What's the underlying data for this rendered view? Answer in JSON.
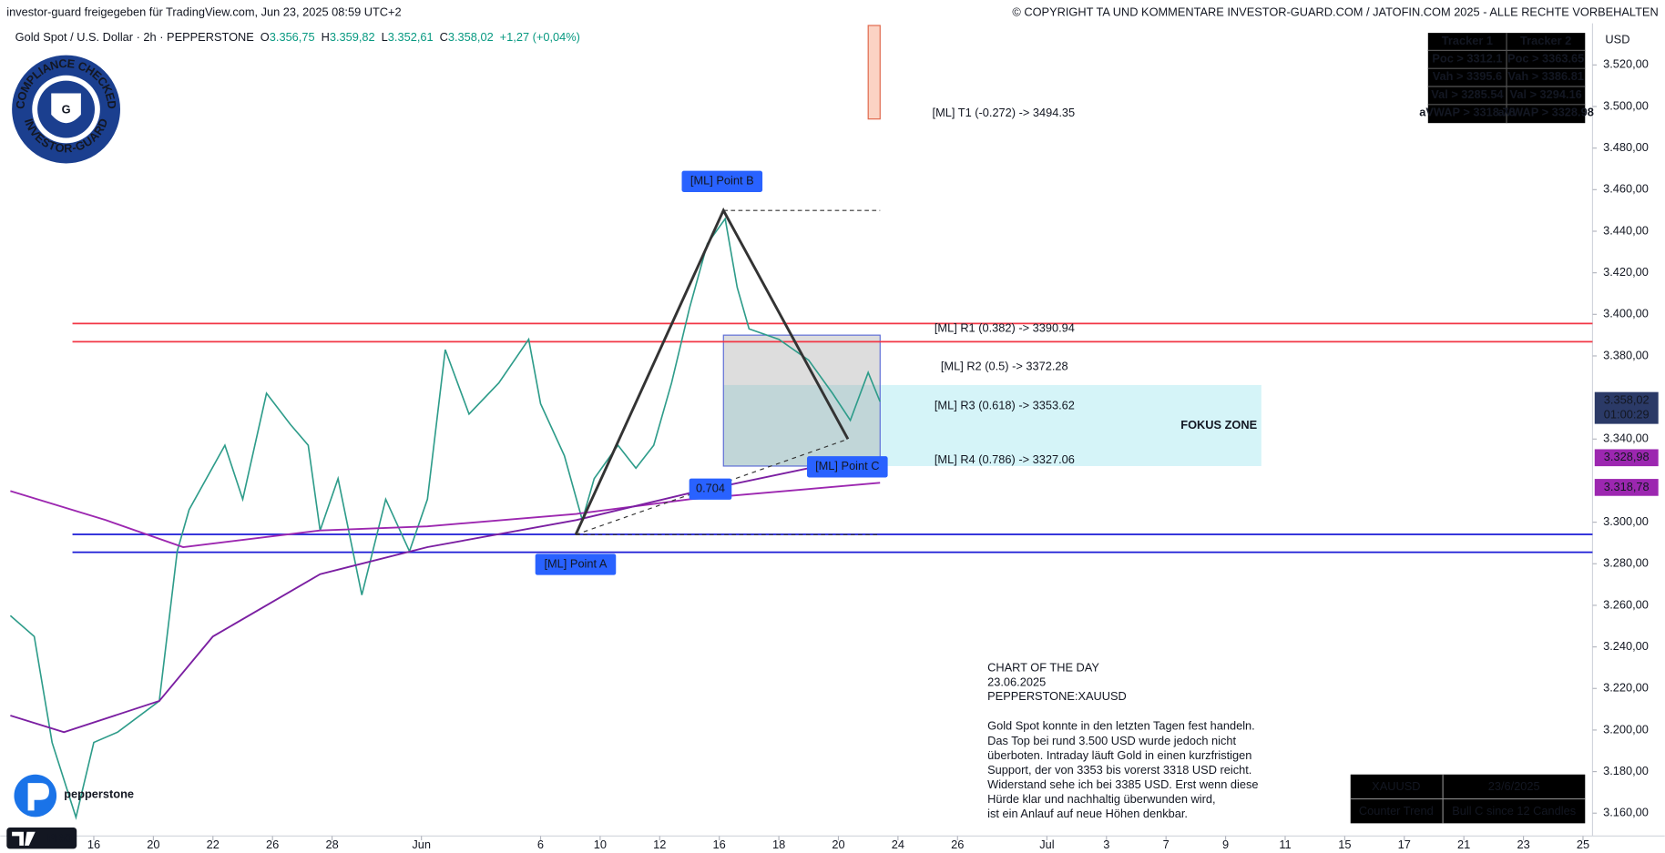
{
  "header": {
    "left": "investor-guard freigegeben für TradingView.com, Jun 23, 2025 08:59 UTC+2",
    "right": "© COPYRIGHT TA UND KOMMENTARE INVESTOR-GUARD.COM / JATOFIN.COM 2025 - ALLE RECHTE VORBEHALTEN"
  },
  "symbol": {
    "name": "Gold Spot / U.S. Dollar · 2h · PEPPERSTONE",
    "ohlc": [
      {
        "k": "O",
        "v": "3.356,75"
      },
      {
        "k": "H",
        "v": "3.359,82"
      },
      {
        "k": "L",
        "v": "3.352,61"
      },
      {
        "k": "C",
        "v": "3.358,02"
      }
    ],
    "change": "+1,27 (+0,04%)"
  },
  "badge": {
    "top": "COMPLIANCE CHECKED",
    "bottom": "INVESTOR-GUARD",
    "letter": "G"
  },
  "logos": {
    "broker": "pepperstone",
    "tv": "PRO"
  },
  "tracker": {
    "headers": [
      "Tracker 1",
      "Tracker 2"
    ],
    "rows": [
      {
        "label": "Poc >",
        "values": [
          3312.1,
          3363.65
        ]
      },
      {
        "label": "Vah >",
        "values": [
          3395.6,
          3386.81
        ]
      },
      {
        "label": "Val >",
        "values": [
          3285.54,
          3294.16
        ]
      },
      {
        "label": "aVWAP >",
        "values": [
          3318.78,
          3328.98
        ]
      }
    ]
  },
  "chart_data": {
    "type": "line",
    "currency": "USD",
    "xlim": [
      -1.57,
      25.16
    ],
    "ylim": [
      3149,
      3539
    ],
    "xticks": [
      {
        "value": 0,
        "label": "16"
      },
      {
        "value": 1,
        "label": "20"
      },
      {
        "value": 2,
        "label": "22"
      },
      {
        "value": 3,
        "label": "26"
      },
      {
        "value": 4,
        "label": "28"
      },
      {
        "value": 5.5,
        "label": "Jun"
      },
      {
        "value": 7.5,
        "label": "6"
      },
      {
        "value": 8.5,
        "label": "10"
      },
      {
        "value": 9.5,
        "label": "12"
      },
      {
        "value": 10.5,
        "label": "16"
      },
      {
        "value": 11.5,
        "label": "18"
      },
      {
        "value": 12.5,
        "label": "20"
      },
      {
        "value": 13.5,
        "label": "24"
      },
      {
        "value": 14.5,
        "label": "26"
      },
      {
        "value": 16,
        "label": "Jul"
      },
      {
        "value": 17,
        "label": "3"
      },
      {
        "value": 18,
        "label": "7"
      },
      {
        "value": 19,
        "label": "9"
      },
      {
        "value": 20,
        "label": "11"
      },
      {
        "value": 21,
        "label": "15"
      },
      {
        "value": 22,
        "label": "17"
      },
      {
        "value": 23,
        "label": "21"
      },
      {
        "value": 24,
        "label": "23"
      },
      {
        "value": 25,
        "label": "25"
      }
    ],
    "yticks": [
      {
        "value": 3520,
        "label": "3.520,00"
      },
      {
        "value": 3500,
        "label": "3.500,00"
      },
      {
        "value": 3480,
        "label": "3.480,00"
      },
      {
        "value": 3460,
        "label": "3.460,00"
      },
      {
        "value": 3440,
        "label": "3.440,00"
      },
      {
        "value": 3420,
        "label": "3.420,00"
      },
      {
        "value": 3400,
        "label": "3.400,00"
      },
      {
        "value": 3380,
        "label": "3.380,00"
      },
      {
        "value": 3340,
        "label": "3.340,00"
      },
      {
        "value": 3300,
        "label": "3.300,00"
      },
      {
        "value": 3280,
        "label": "3.280,00"
      },
      {
        "value": 3260,
        "label": "3.260,00"
      },
      {
        "value": 3240,
        "label": "3.240,00"
      },
      {
        "value": 3220,
        "label": "3.220,00"
      },
      {
        "value": 3200,
        "label": "3.200,00"
      },
      {
        "value": 3180,
        "label": "3.180,00"
      },
      {
        "value": 3160,
        "label": "3.160,00"
      }
    ],
    "series": [
      {
        "color": "#2e9c8a",
        "x": [
          -1.4,
          -1.0,
          -0.7,
          -0.3,
          0.0,
          0.4,
          1.1,
          1.4,
          1.6,
          2.2,
          2.5,
          2.9,
          3.3,
          3.6,
          3.8,
          4.1,
          4.5,
          4.9,
          5.3,
          5.6,
          5.9,
          6.3,
          6.8,
          7.3,
          7.5,
          7.9,
          8.2,
          8.4,
          8.8,
          9.1,
          9.4,
          9.7,
          10.0,
          10.3,
          10.6,
          10.8,
          11.0,
          11.5,
          12.0,
          12.4,
          12.7,
          13.0,
          13.2
        ],
        "values": [
          3255,
          3245,
          3194,
          3158,
          3194,
          3199,
          3214,
          3286,
          3306,
          3337,
          3311,
          3362,
          3347,
          3337,
          3296,
          3321,
          3265,
          3311,
          3286,
          3311,
          3383,
          3352,
          3367,
          3388,
          3357,
          3332,
          3301,
          3321,
          3337,
          3326,
          3337,
          3367,
          3403,
          3434,
          3446,
          3413,
          3393,
          3388,
          3378,
          3362,
          3349,
          3372,
          3358
        ]
      },
      {
        "color": "#9c27b0",
        "x": [
          -1.4,
          0.2,
          1.5,
          3.8,
          5.6,
          8.1,
          10.0,
          12.0,
          13.2
        ],
        "values": [
          3315,
          3301,
          3288,
          3296,
          3298,
          3304,
          3311,
          3316,
          3319
        ]
      },
      {
        "color": "#7b1fa2",
        "x": [
          -1.4,
          -0.5,
          1.1,
          2.0,
          3.8,
          5.6,
          8.1,
          10.0,
          12.0
        ],
        "values": [
          3207,
          3199,
          3214,
          3245,
          3275,
          3288,
          3301,
          3314,
          3326
        ]
      }
    ],
    "level_colors": [
      "#f23645",
      "#1a1ad6"
    ],
    "ml_levels": [
      "[ML] T1 (-0.272) -> 3494.35",
      "[ML] R1 (0.382) -> 3390.94",
      "[ML] R2 (0.5) -> 3372.28",
      "[ML] R3 (0.618) -> 3353.62",
      "[ML] R4 (0.786) -> 3327.06"
    ],
    "pattern": {
      "labels": [
        "[ML] Point A",
        "[ML] Point B",
        "[ML]  Point C"
      ],
      "x": [
        8.09,
        10.57,
        12.66
      ],
      "values": [
        3294,
        3450,
        3340
      ],
      "ratio": "0.704",
      "end_x": 13.2
    },
    "target_bar": {
      "x": [
        13.0,
        13.2
      ],
      "range": [
        3494,
        3539
      ],
      "color": "#fbd3c4"
    },
    "pattern_box": {
      "x": [
        10.57,
        13.2
      ],
      "range": [
        3327,
        3390
      ]
    },
    "focus_zone": {
      "label": "FOKUS ZONE",
      "x": [
        10.57,
        19.6
      ],
      "range": [
        3327,
        3366
      ]
    },
    "price_tag": {
      "value": 3358.02,
      "label": "3.358,02",
      "countdown": "01:00:29"
    },
    "vwap_tags": [
      {
        "value": 3328.98,
        "label": "3.328,98"
      },
      {
        "value": 3318.78,
        "label": "3.318,78"
      }
    ]
  },
  "commentary": {
    "heading": [
      "CHART OF THE DAY",
      "23.06.2025",
      "PEPPERSTONE:XAUUSD"
    ],
    "body": [
      "Gold Spot konnte in den letzten Tagen fest handeln.",
      "Das Top bei rund 3.500 USD wurde jedoch nicht",
      "überboten. Intraday läuft Gold in einen kurzfristigen",
      "Support, der von 3353 bis vorerst 3318 USD reicht.",
      "Widerstand sehe ich bei 3385 USD. Erst wenn diese",
      "Hürde klar und nachhaltig überwunden wird,",
      "ist ein Anlauf auf neue Höhen denkbar."
    ]
  },
  "info_table": {
    "rows": [
      [
        "XAUUSD",
        "23/6/2025"
      ],
      [
        "Counter Trend",
        "Bull C since 12 Candles"
      ]
    ]
  }
}
